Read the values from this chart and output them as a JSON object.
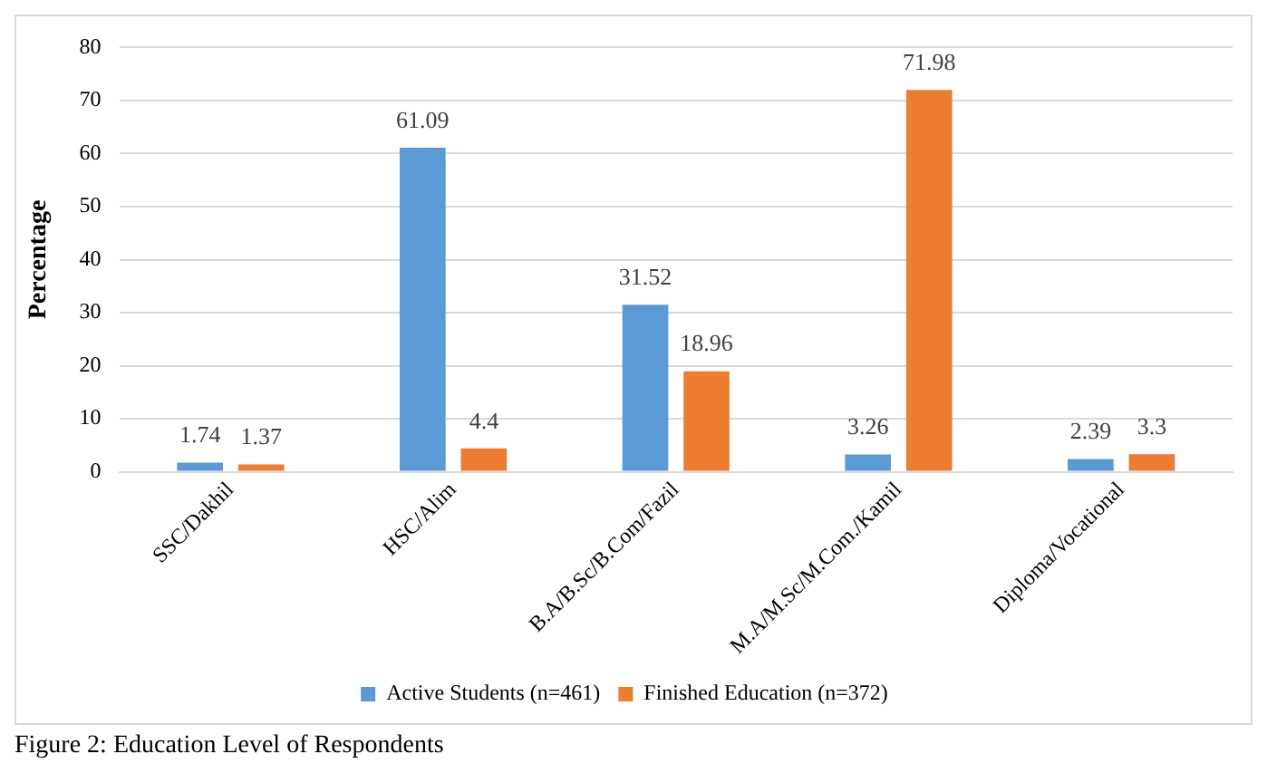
{
  "chart_data": {
    "type": "bar",
    "ylabel": "Percentage",
    "categories": [
      "SSC/Dakhil",
      "HSC/Alim",
      "B.A/B.Sc/B.Com/Fazil",
      "M.A/M.Sc/M.Com./Kamil",
      "Diploma/Vocational"
    ],
    "series": [
      {
        "name": "Active Students (n=461)",
        "color": "#5b9bd5",
        "values": [
          1.74,
          61.09,
          31.52,
          3.26,
          2.39
        ]
      },
      {
        "name": "Finished Education (n=372)",
        "color": "#ed7d31",
        "values": [
          1.37,
          4.4,
          18.96,
          71.98,
          3.3
        ]
      }
    ],
    "ylim": [
      0,
      80
    ],
    "yticks": [
      0,
      10,
      20,
      30,
      40,
      50,
      60,
      70,
      80
    ],
    "grid": "y",
    "legend": "bottom",
    "data_labels": true,
    "annotations": [
      "Figure 2: Education Level of Respondents"
    ]
  }
}
